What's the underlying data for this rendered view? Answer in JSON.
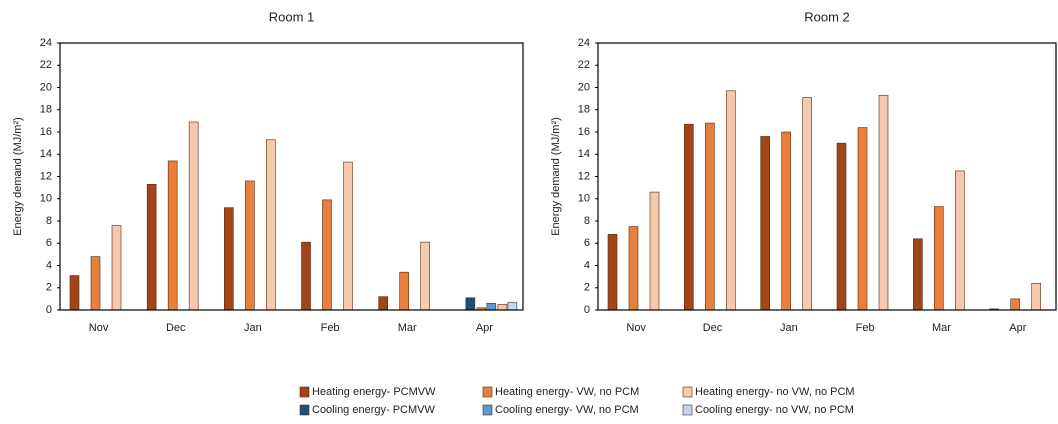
{
  "chart_data": [
    {
      "type": "bar",
      "title": "Room 1",
      "y_label": "Energy demand (MJ/m²)",
      "categories": [
        "Nov",
        "Dec",
        "Jan",
        "Feb",
        "Mar",
        "Apr"
      ],
      "ylim": [
        0,
        24
      ],
      "yticks": [
        0,
        2,
        4,
        6,
        8,
        10,
        12,
        14,
        16,
        18,
        20,
        22,
        24
      ],
      "series": [
        {
          "name": "Heating energy- PCMVW",
          "color": "#a0461a",
          "values": [
            3.1,
            11.3,
            9.2,
            6.1,
            1.2,
            0
          ]
        },
        {
          "name": "Heating energy- VW, no PCM",
          "color": "#e8803d",
          "values": [
            4.8,
            13.4,
            11.6,
            9.9,
            3.4,
            0.2
          ]
        },
        {
          "name": "Heating energy- no VW, no PCM",
          "color": "#f4c9ad",
          "values": [
            7.6,
            16.9,
            15.3,
            13.3,
            6.1,
            0.5
          ]
        },
        {
          "name": "Cooling energy- PCMVW",
          "color": "#1f4e79",
          "values": [
            0,
            0,
            0,
            0,
            0,
            1.1
          ]
        },
        {
          "name": "Cooling energy- VW, no PCM",
          "color": "#5b9bd5",
          "values": [
            0,
            0,
            0,
            0,
            0,
            0.6
          ]
        },
        {
          "name": "Cooling energy- no VW, no PCM",
          "color": "#bdd7ee",
          "values": [
            0,
            0,
            0,
            0,
            0,
            0.7
          ]
        }
      ]
    },
    {
      "type": "bar",
      "title": "Room 2",
      "y_label": "Energy demand (MJ/m²)",
      "categories": [
        "Nov",
        "Dec",
        "Jan",
        "Feb",
        "Mar",
        "Apr"
      ],
      "ylim": [
        0,
        24
      ],
      "yticks": [
        0,
        2,
        4,
        6,
        8,
        10,
        12,
        14,
        16,
        18,
        20,
        22,
        24
      ],
      "series": [
        {
          "name": "Heating energy- PCMVW",
          "color": "#a0461a",
          "values": [
            6.8,
            16.7,
            15.6,
            15.0,
            6.4,
            0.1
          ]
        },
        {
          "name": "Heating energy- VW, no PCM",
          "color": "#e8803d",
          "values": [
            7.5,
            16.8,
            16.0,
            16.4,
            9.3,
            1.0
          ]
        },
        {
          "name": "Heating energy- no VW, no PCM",
          "color": "#f4c9ad",
          "values": [
            10.6,
            19.7,
            19.1,
            19.3,
            12.5,
            2.4
          ]
        },
        {
          "name": "Cooling energy- PCMVW",
          "color": "#1f4e79",
          "values": [
            0,
            0,
            0,
            0,
            0,
            0
          ]
        },
        {
          "name": "Cooling energy- VW, no PCM",
          "color": "#5b9bd5",
          "values": [
            0,
            0,
            0,
            0,
            0,
            0
          ]
        },
        {
          "name": "Cooling energy- no VW, no PCM",
          "color": "#bdd7ee",
          "values": [
            0,
            0,
            0,
            0,
            0,
            0
          ]
        }
      ]
    }
  ]
}
